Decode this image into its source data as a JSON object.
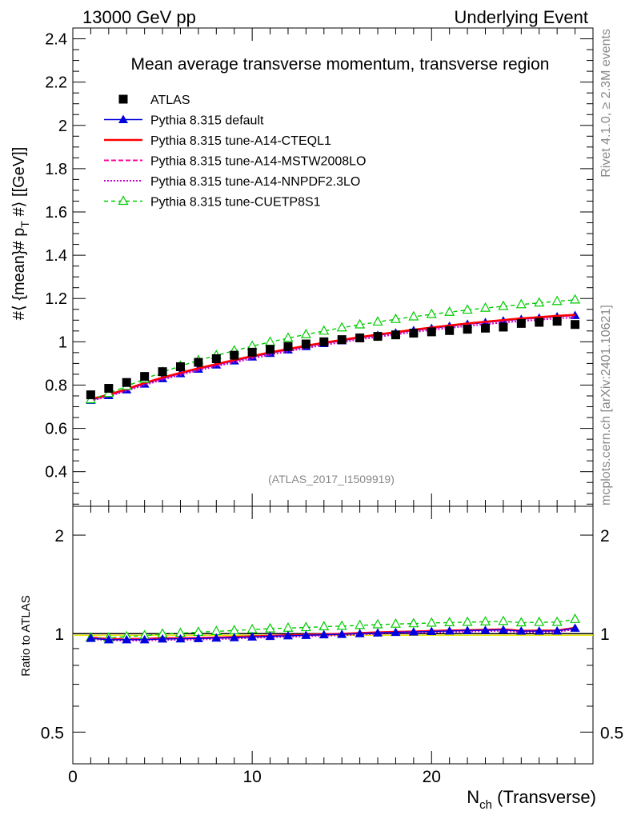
{
  "header": {
    "left": "13000 GeV pp",
    "right": "Underlying Event"
  },
  "side": {
    "top": "Rivet 4.1.0, ≥ 2.3M events",
    "bottom": "mcplots.cern.ch [arXiv:2401.10621]"
  },
  "chart_data": [
    {
      "type": "line",
      "panel": "main",
      "title": "Mean average transverse momentum, transverse region",
      "ylabel": "#⟨ {mean}# p_T #⟩ [[GeV]]",
      "ylabel_parts": {
        "a": "#⟨ {mean}# p",
        "sub": "T",
        "b": " #⟩ [[GeV]]"
      },
      "xlabel": "",
      "xlim": [
        0,
        29
      ],
      "ylim": [
        0.24,
        2.45
      ],
      "yticks": [
        0.4,
        0.6,
        0.8,
        1,
        1.2,
        1.4,
        1.6,
        1.8,
        2,
        2.2,
        2.4
      ],
      "ytick_labels": [
        "0.4",
        "0.6",
        "0.8",
        "1",
        "1.2",
        "1.4",
        "1.6",
        "1.8",
        "2",
        "2.2",
        "2.4"
      ],
      "watermark": "(ATLAS_2017_I1509919)",
      "x": [
        1,
        2,
        3,
        4,
        5,
        6,
        7,
        8,
        9,
        10,
        11,
        12,
        13,
        14,
        15,
        16,
        17,
        18,
        19,
        20,
        21,
        22,
        23,
        24,
        25,
        26,
        27,
        28
      ],
      "series": [
        {
          "name": "ATLAS",
          "style": "data",
          "color": "#000000",
          "values": [
            0.755,
            0.785,
            0.812,
            0.84,
            0.862,
            0.885,
            0.905,
            0.922,
            0.938,
            0.952,
            0.965,
            0.978,
            0.99,
            1.0,
            1.01,
            1.018,
            1.025,
            1.032,
            1.04,
            1.046,
            1.052,
            1.058,
            1.063,
            1.068,
            1.085,
            1.09,
            1.095,
            1.08
          ]
        },
        {
          "name": "Pythia 8.315 default",
          "style": "triangle-solid",
          "color": "#0000dd",
          "values": [
            0.73,
            0.752,
            0.778,
            0.805,
            0.83,
            0.853,
            0.874,
            0.893,
            0.912,
            0.93,
            0.947,
            0.963,
            0.978,
            0.992,
            1.005,
            1.018,
            1.03,
            1.041,
            1.052,
            1.062,
            1.072,
            1.081,
            1.089,
            1.097,
            1.104,
            1.11,
            1.116,
            1.122
          ]
        },
        {
          "name": "Pythia 8.315 tune-A14-CTEQL1",
          "style": "solid",
          "color": "#ff0000",
          "values": [
            0.735,
            0.756,
            0.782,
            0.81,
            0.835,
            0.857,
            0.878,
            0.897,
            0.916,
            0.934,
            0.951,
            0.967,
            0.982,
            0.996,
            1.009,
            1.022,
            1.034,
            1.045,
            1.056,
            1.066,
            1.076,
            1.085,
            1.093,
            1.101,
            1.108,
            1.114,
            1.12,
            1.125
          ]
        },
        {
          "name": "Pythia 8.315 tune-A14-MSTW2008LO",
          "style": "dashed",
          "color": "#ff0099",
          "values": [
            0.732,
            0.753,
            0.779,
            0.807,
            0.832,
            0.854,
            0.875,
            0.894,
            0.913,
            0.931,
            0.948,
            0.964,
            0.979,
            0.993,
            1.006,
            1.019,
            1.031,
            1.042,
            1.053,
            1.063,
            1.073,
            1.082,
            1.09,
            1.098,
            1.105,
            1.111,
            1.117,
            1.122
          ]
        },
        {
          "name": "Pythia 8.315 tune-A14-NNPDF2.3LO",
          "style": "dotted",
          "color": "#cc00cc",
          "values": [
            0.727,
            0.748,
            0.773,
            0.8,
            0.825,
            0.847,
            0.868,
            0.887,
            0.905,
            0.923,
            0.94,
            0.956,
            0.971,
            0.985,
            0.998,
            1.011,
            1.023,
            1.034,
            1.045,
            1.055,
            1.064,
            1.073,
            1.081,
            1.089,
            1.096,
            1.102,
            1.108,
            1.113
          ]
        },
        {
          "name": "Pythia 8.315 tune-CUETP8S1",
          "style": "triangle-open-dashed",
          "color": "#00cc00",
          "values": [
            0.733,
            0.762,
            0.795,
            0.828,
            0.86,
            0.888,
            0.914,
            0.937,
            0.959,
            0.98,
            0.999,
            1.017,
            1.034,
            1.05,
            1.065,
            1.079,
            1.092,
            1.104,
            1.116,
            1.127,
            1.137,
            1.147,
            1.156,
            1.164,
            1.172,
            1.18,
            1.187,
            1.194
          ]
        }
      ]
    },
    {
      "type": "line",
      "panel": "ratio",
      "ylabel": "Ratio to ATLAS",
      "xlabel": "N_ch (Transverse)",
      "xlabel_parts": {
        "a": "N",
        "sub": "ch",
        "b": " (Transverse)"
      },
      "xlim": [
        0,
        29
      ],
      "ylim": [
        0.4,
        2.45
      ],
      "yscale": "log",
      "xticks": [
        0,
        10,
        20
      ],
      "xtick_labels": [
        "0",
        "10",
        "20"
      ],
      "yticks": [
        0.5,
        1,
        2
      ],
      "ytick_labels": [
        "0.5",
        "1",
        "2"
      ],
      "x": [
        1,
        2,
        3,
        4,
        5,
        6,
        7,
        8,
        9,
        10,
        11,
        12,
        13,
        14,
        15,
        16,
        17,
        18,
        19,
        20,
        21,
        22,
        23,
        24,
        25,
        26,
        27,
        28
      ],
      "series": [
        {
          "name": "Pythia 8.315 default",
          "style": "triangle-solid",
          "color": "#0000dd",
          "values": [
            0.967,
            0.958,
            0.958,
            0.958,
            0.963,
            0.964,
            0.966,
            0.969,
            0.972,
            0.977,
            0.981,
            0.985,
            0.988,
            0.992,
            0.995,
            1.0,
            1.005,
            1.009,
            1.012,
            1.015,
            1.019,
            1.022,
            1.024,
            1.027,
            1.018,
            1.018,
            1.019,
            1.039
          ]
        },
        {
          "name": "Pythia 8.315 tune-A14-CTEQL1",
          "style": "solid",
          "color": "#ff0000",
          "values": [
            0.974,
            0.963,
            0.963,
            0.964,
            0.969,
            0.968,
            0.97,
            0.973,
            0.977,
            0.981,
            0.985,
            0.989,
            0.992,
            0.996,
            0.999,
            1.004,
            1.009,
            1.013,
            1.015,
            1.019,
            1.023,
            1.025,
            1.028,
            1.031,
            1.021,
            1.022,
            1.023,
            1.042
          ]
        },
        {
          "name": "Pythia 8.315 tune-A14-MSTW2008LO",
          "style": "dashed",
          "color": "#ff0099",
          "values": [
            0.97,
            0.959,
            0.959,
            0.961,
            0.965,
            0.965,
            0.967,
            0.97,
            0.973,
            0.978,
            0.982,
            0.986,
            0.989,
            0.993,
            0.996,
            1.001,
            1.006,
            1.01,
            1.013,
            1.016,
            1.02,
            1.023,
            1.025,
            1.028,
            1.018,
            1.019,
            1.02,
            1.039
          ]
        },
        {
          "name": "Pythia 8.315 tune-A14-NNPDF2.3LO",
          "style": "dotted",
          "color": "#cc00cc",
          "values": [
            0.963,
            0.953,
            0.952,
            0.952,
            0.957,
            0.957,
            0.959,
            0.962,
            0.965,
            0.97,
            0.974,
            0.977,
            0.981,
            0.985,
            0.988,
            0.993,
            0.998,
            1.002,
            1.005,
            1.009,
            1.011,
            1.014,
            1.017,
            1.02,
            1.01,
            1.011,
            1.012,
            1.031
          ]
        },
        {
          "name": "Pythia 8.315 tune-CUETP8S1",
          "style": "triangle-open-dashed",
          "color": "#00cc00",
          "values": [
            0.971,
            0.971,
            0.979,
            0.986,
            0.998,
            1.003,
            1.01,
            1.016,
            1.022,
            1.029,
            1.035,
            1.04,
            1.044,
            1.05,
            1.054,
            1.06,
            1.065,
            1.07,
            1.073,
            1.078,
            1.081,
            1.084,
            1.087,
            1.09,
            1.08,
            1.083,
            1.084,
            1.106
          ]
        }
      ]
    }
  ]
}
